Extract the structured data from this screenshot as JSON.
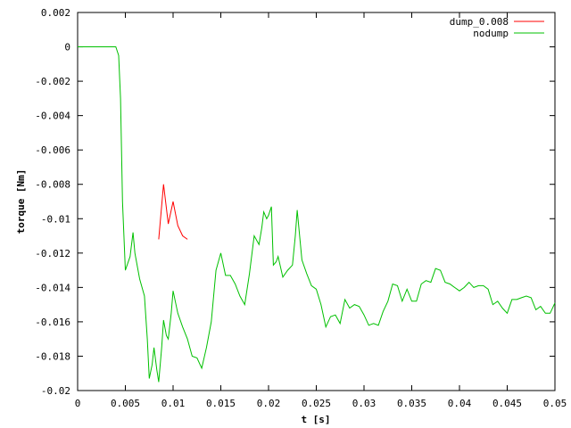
{
  "chart_data": {
    "type": "line",
    "title": "",
    "xlabel": "t [s]",
    "ylabel": "torque [Nm]",
    "xlim": [
      0,
      0.05
    ],
    "ylim": [
      -0.02,
      0.002
    ],
    "x_ticks": [
      0,
      0.005,
      0.01,
      0.015,
      0.02,
      0.025,
      0.03,
      0.035,
      0.04,
      0.045,
      0.05
    ],
    "x_tick_labels": [
      "0",
      "0.005",
      "0.01",
      "0.015",
      "0.02",
      "0.025",
      "0.03",
      "0.035",
      "0.04",
      "0.045",
      "0.05"
    ],
    "y_ticks": [
      0.002,
      0,
      -0.002,
      -0.004,
      -0.006,
      -0.008,
      -0.01,
      -0.012,
      -0.014,
      -0.016,
      -0.018,
      -0.02
    ],
    "y_tick_labels": [
      "0.002",
      "0",
      "-0.002",
      "-0.004",
      "-0.006",
      "-0.008",
      "-0.01",
      "-0.012",
      "-0.014",
      "-0.016",
      "-0.018",
      "-0.02"
    ],
    "grid": false,
    "legend_position": "top-right",
    "series": [
      {
        "name": "dump_0.008",
        "color": "#ff0000",
        "x": [
          0.0085,
          0.009,
          0.0095,
          0.01,
          0.0105,
          0.011,
          0.0115
        ],
        "y": [
          -0.0112,
          -0.008,
          -0.0103,
          -0.009,
          -0.0104,
          -0.011,
          -0.0112
        ]
      },
      {
        "name": "nodump",
        "color": "#00c000",
        "x": [
          0,
          0.0005,
          0.001,
          0.0015,
          0.002,
          0.0025,
          0.003,
          0.0035,
          0.004,
          0.0043,
          0.0045,
          0.0047,
          0.005,
          0.0055,
          0.0058,
          0.006,
          0.0065,
          0.007,
          0.0073,
          0.0075,
          0.0078,
          0.008,
          0.0083,
          0.0085,
          0.0088,
          0.009,
          0.0093,
          0.0095,
          0.0098,
          0.01,
          0.0105,
          0.011,
          0.0115,
          0.012,
          0.0125,
          0.013,
          0.0135,
          0.014,
          0.0145,
          0.015,
          0.0155,
          0.016,
          0.0165,
          0.017,
          0.0175,
          0.018,
          0.0185,
          0.019,
          0.0193,
          0.0195,
          0.0198,
          0.02,
          0.0203,
          0.0205,
          0.0208,
          0.021,
          0.0215,
          0.022,
          0.0225,
          0.0228,
          0.023,
          0.0235,
          0.024,
          0.0245,
          0.025,
          0.0255,
          0.026,
          0.0265,
          0.027,
          0.0275,
          0.028,
          0.0285,
          0.029,
          0.0295,
          0.03,
          0.0305,
          0.031,
          0.0315,
          0.032,
          0.0325,
          0.033,
          0.0335,
          0.034,
          0.0345,
          0.035,
          0.0355,
          0.036,
          0.0365,
          0.037,
          0.0375,
          0.038,
          0.0385,
          0.039,
          0.0395,
          0.04,
          0.0405,
          0.041,
          0.0415,
          0.042,
          0.0425,
          0.043,
          0.0435,
          0.044,
          0.0445,
          0.045,
          0.0455,
          0.046,
          0.0465,
          0.047,
          0.0475,
          0.048,
          0.0485,
          0.049,
          0.0495,
          0.05
        ],
        "y": [
          0,
          0,
          0,
          0,
          0,
          0,
          0,
          0,
          0,
          -0.0005,
          -0.003,
          -0.009,
          -0.013,
          -0.0122,
          -0.0108,
          -0.012,
          -0.0135,
          -0.0145,
          -0.017,
          -0.0193,
          -0.0185,
          -0.0175,
          -0.0188,
          -0.0195,
          -0.0175,
          -0.0159,
          -0.0168,
          -0.017,
          -0.0155,
          -0.0142,
          -0.0155,
          -0.0163,
          -0.017,
          -0.018,
          -0.0181,
          -0.0187,
          -0.0175,
          -0.016,
          -0.013,
          -0.012,
          -0.0133,
          -0.0133,
          -0.0138,
          -0.0145,
          -0.015,
          -0.0132,
          -0.011,
          -0.0115,
          -0.0105,
          -0.0096,
          -0.01,
          -0.0098,
          -0.0093,
          -0.0127,
          -0.0125,
          -0.0122,
          -0.0134,
          -0.013,
          -0.0127,
          -0.011,
          -0.0095,
          -0.0124,
          -0.0132,
          -0.0139,
          -0.0141,
          -0.015,
          -0.0163,
          -0.0157,
          -0.0156,
          -0.0161,
          -0.0147,
          -0.0152,
          -0.015,
          -0.0151,
          -0.0156,
          -0.0162,
          -0.0161,
          -0.0162,
          -0.0154,
          -0.0148,
          -0.0138,
          -0.0139,
          -0.0148,
          -0.0141,
          -0.0148,
          -0.0148,
          -0.0138,
          -0.0136,
          -0.0137,
          -0.0129,
          -0.013,
          -0.0137,
          -0.0138,
          -0.014,
          -0.0142,
          -0.014,
          -0.0137,
          -0.014,
          -0.0139,
          -0.0139,
          -0.0141,
          -0.015,
          -0.0148,
          -0.0152,
          -0.0155,
          -0.0147,
          -0.0147,
          -0.0146,
          -0.0145,
          -0.0146,
          -0.0153,
          -0.0151,
          -0.0155,
          -0.0155,
          -0.0149
        ]
      }
    ]
  }
}
